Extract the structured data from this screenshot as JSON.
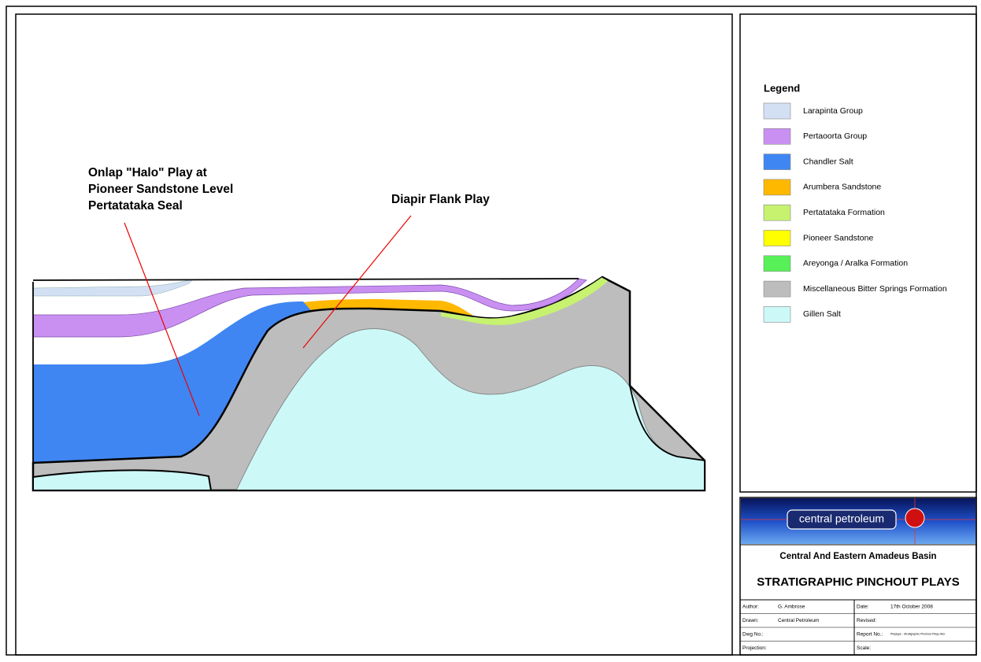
{
  "diagram": {
    "annotations": [
      {
        "lines": [
          "Onlap \"Halo\" Play at",
          "Pioneer Sandstone Level",
          "Pertatataka Seal"
        ]
      },
      {
        "lines": [
          "Diapir Flank Play"
        ]
      }
    ]
  },
  "legend": {
    "title": "Legend",
    "items": [
      {
        "label": "Larapinta Group",
        "color": "#d3e0f4"
      },
      {
        "label": "Pertaoorta Group",
        "color": "#c990f2"
      },
      {
        "label": "Chandler Salt",
        "color": "#3f86f2"
      },
      {
        "label": "Arumbera Sandstone",
        "color": "#ffb800"
      },
      {
        "label": "Pertatataka Formation",
        "color": "#c6f270"
      },
      {
        "label": "Pioneer Sandstone",
        "color": "#ffff00"
      },
      {
        "label": "Areyonga / Aralka Formation",
        "color": "#58f058"
      },
      {
        "label": "Miscellaneous Bitter Springs Formation",
        "color": "#bdbdbd"
      },
      {
        "label": "Gillen Salt",
        "color": "#ccf8f8"
      }
    ]
  },
  "title_block": {
    "company": "central petroleum",
    "subtitle": "Central And Eastern Amadeus Basin",
    "title": "STRATIGRAPHIC PINCHOUT PLAYS",
    "fields": [
      [
        {
          "label": "Author:",
          "value": "G. Ambrose"
        },
        {
          "label": "Date:",
          "value": "17th October 2008"
        }
      ],
      [
        {
          "label": "Drawn:",
          "value": "Central Petroleum"
        },
        {
          "label": "Revised:"
        }
      ],
      [
        {
          "label": "Dwg No.:"
        },
        {
          "label": "Report No.:",
          "value": "Playtype - Stratigraphic Pinchout Plays.Wor"
        }
      ],
      [
        {
          "label": "Projection:"
        },
        {
          "label": "Scale:"
        }
      ]
    ]
  }
}
